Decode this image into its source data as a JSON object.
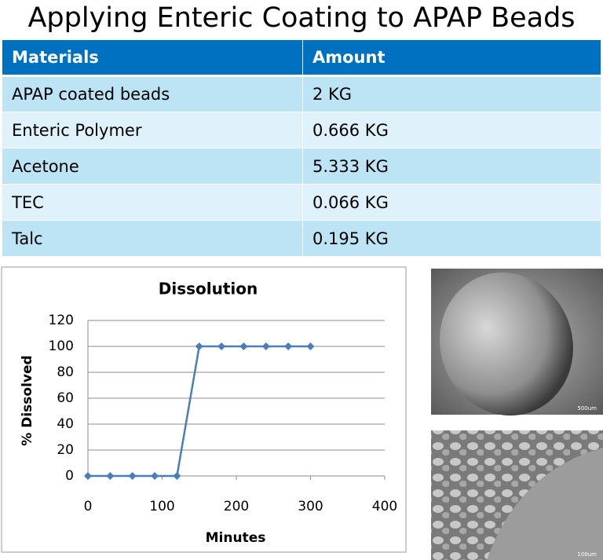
{
  "title": "Applying Enteric Coating to APAP Beads",
  "table": {
    "header": [
      "Materials",
      "Amount"
    ],
    "rows": [
      [
        "APAP coated beads",
        "2 KG"
      ],
      [
        "Enteric Polymer",
        "0.666 KG"
      ],
      [
        "Acetone",
        "5.333 KG"
      ],
      [
        "TEC",
        "0.066 KG"
      ],
      [
        "Talc",
        "0.195 KG"
      ]
    ]
  },
  "chart_data": {
    "type": "line",
    "title": "Dissolution",
    "x_label": "Minutes",
    "y_label": "% Dissolved",
    "x": [
      0,
      30,
      60,
      90,
      120,
      150,
      180,
      210,
      240,
      270,
      300
    ],
    "values": [
      0,
      0,
      0,
      0,
      0,
      100,
      100,
      100,
      100,
      100,
      100
    ],
    "color": "#4a7ebb",
    "xlim": [
      0,
      400
    ],
    "xticks": [
      0,
      100,
      200,
      300,
      400
    ],
    "ylim": [
      0,
      120
    ],
    "yticks": [
      0,
      20,
      40,
      60,
      80,
      100,
      120
    ],
    "grid": true
  },
  "images": [
    {
      "scale_label": "500um"
    },
    {
      "scale_label": "100um"
    }
  ]
}
